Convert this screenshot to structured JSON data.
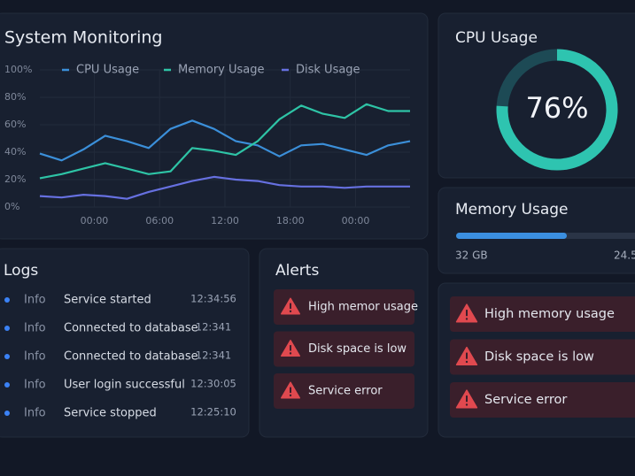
{
  "monitoring": {
    "title": "System Monitoring"
  },
  "chart_data": {
    "type": "line",
    "x": [
      -5,
      -3,
      -1,
      1,
      3,
      5,
      7,
      9,
      11,
      13,
      15,
      17,
      19,
      21,
      23,
      25,
      27,
      29
    ],
    "xlim": [
      -5,
      29
    ],
    "xticks": [
      {
        "value": 0,
        "label": "00:00"
      },
      {
        "value": 6,
        "label": "06:00"
      },
      {
        "value": 12,
        "label": "12:00"
      },
      {
        "value": 18,
        "label": "18:00"
      },
      {
        "value": 24,
        "label": "00:00"
      }
    ],
    "ylim": [
      0,
      100
    ],
    "yticks": [
      {
        "value": 0,
        "label": "0%"
      },
      {
        "value": 20,
        "label": "20%"
      },
      {
        "value": 40,
        "label": "40%"
      },
      {
        "value": 60,
        "label": "60%"
      },
      {
        "value": 80,
        "label": "80%"
      },
      {
        "value": 100,
        "label": "100%"
      }
    ],
    "grid": true,
    "series": [
      {
        "name": "CPU Usage",
        "color": "#3b8fd9",
        "values": [
          39,
          34,
          42,
          52,
          48,
          43,
          57,
          63,
          57,
          48,
          45,
          37,
          45,
          46,
          42,
          38,
          45,
          48
        ]
      },
      {
        "name": "Memory Usage",
        "color": "#2ec4a6",
        "values": [
          21,
          24,
          28,
          32,
          28,
          24,
          26,
          43,
          41,
          38,
          48,
          64,
          74,
          68,
          65,
          75,
          70,
          70
        ]
      },
      {
        "name": "Disk Usage",
        "color": "#6670e0",
        "values": [
          8,
          7,
          9,
          8,
          6,
          11,
          15,
          19,
          22,
          20,
          19,
          16,
          15,
          15,
          14,
          15,
          15,
          15
        ]
      }
    ]
  },
  "cpu": {
    "title": "CPU Usage",
    "value": 76,
    "label": "76%"
  },
  "memory": {
    "title": "Memory Usage",
    "used_label": "32 GB",
    "total_label": "24.5"
  },
  "logs": {
    "title": "Logs",
    "rows": [
      [
        "Info",
        "Service started",
        "12:34:56"
      ],
      [
        "Info",
        "Connected to database",
        "12:341"
      ],
      [
        "Info",
        "Connected to database",
        "12:341"
      ],
      [
        "Info",
        "User login successful",
        "12:30:05"
      ],
      [
        "Info",
        "Service stopped",
        "12:25:10"
      ]
    ]
  },
  "alerts": {
    "title": "Alerts",
    "items": [
      "High memor usage",
      "Disk space is low",
      "Service error"
    ]
  },
  "alerts_side": {
    "items": [
      "High memory usage",
      "Disk space is low",
      "Service error"
    ]
  }
}
